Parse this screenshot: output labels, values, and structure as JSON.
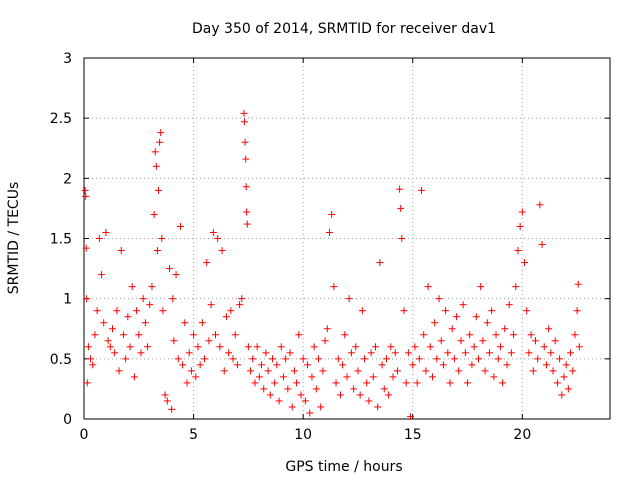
{
  "chart_data": {
    "type": "scatter",
    "title": "Day 350 of 2014, SRMTID for receiver dav1",
    "xlabel": "GPS time / hours",
    "ylabel": "SRMTID / TECUs",
    "xlim": [
      0,
      24
    ],
    "ylim": [
      0,
      3
    ],
    "xticks": [
      0,
      5,
      10,
      15,
      20
    ],
    "yticks": [
      0,
      0.5,
      1,
      1.5,
      2,
      2.5,
      3
    ],
    "xtick_labels": [
      "0",
      "5",
      "10",
      "15",
      "20"
    ],
    "ytick_labels": [
      "0",
      "0.5",
      "1",
      "1.5",
      "2",
      "2.5",
      "3"
    ],
    "grid": true,
    "marker": "plus",
    "color": "#ff0000",
    "series": [
      {
        "name": "dav1",
        "points": [
          [
            0.05,
            1.9
          ],
          [
            0.08,
            1.85
          ],
          [
            0.1,
            1.42
          ],
          [
            0.12,
            1.0
          ],
          [
            0.15,
            0.3
          ],
          [
            0.2,
            0.6
          ],
          [
            0.3,
            0.5
          ],
          [
            0.4,
            0.45
          ],
          [
            0.5,
            0.7
          ],
          [
            0.6,
            0.9
          ],
          [
            0.7,
            1.5
          ],
          [
            0.8,
            1.2
          ],
          [
            0.9,
            0.8
          ],
          [
            1.0,
            1.55
          ],
          [
            1.1,
            0.65
          ],
          [
            1.2,
            0.6
          ],
          [
            1.3,
            0.75
          ],
          [
            1.4,
            0.55
          ],
          [
            1.5,
            0.9
          ],
          [
            1.6,
            0.4
          ],
          [
            1.7,
            1.4
          ],
          [
            1.8,
            0.7
          ],
          [
            1.9,
            0.5
          ],
          [
            2.0,
            0.85
          ],
          [
            2.1,
            0.6
          ],
          [
            2.2,
            1.1
          ],
          [
            2.3,
            0.35
          ],
          [
            2.4,
            0.9
          ],
          [
            2.5,
            0.7
          ],
          [
            2.6,
            0.55
          ],
          [
            2.7,
            1.0
          ],
          [
            2.8,
            0.8
          ],
          [
            2.9,
            0.6
          ],
          [
            3.0,
            0.95
          ],
          [
            3.1,
            1.1
          ],
          [
            3.2,
            1.7
          ],
          [
            3.25,
            2.22
          ],
          [
            3.3,
            2.1
          ],
          [
            3.35,
            1.4
          ],
          [
            3.4,
            1.9
          ],
          [
            3.45,
            2.3
          ],
          [
            3.5,
            2.38
          ],
          [
            3.55,
            1.5
          ],
          [
            3.6,
            0.9
          ],
          [
            3.7,
            0.2
          ],
          [
            3.8,
            0.15
          ],
          [
            3.9,
            1.25
          ],
          [
            4.0,
            0.08
          ],
          [
            4.05,
            1.0
          ],
          [
            4.1,
            0.65
          ],
          [
            4.2,
            1.2
          ],
          [
            4.3,
            0.5
          ],
          [
            4.4,
            1.6
          ],
          [
            4.5,
            0.45
          ],
          [
            4.6,
            0.8
          ],
          [
            4.7,
            0.3
          ],
          [
            4.8,
            0.55
          ],
          [
            4.9,
            0.4
          ],
          [
            5.0,
            0.7
          ],
          [
            5.1,
            0.35
          ],
          [
            5.2,
            0.6
          ],
          [
            5.3,
            0.45
          ],
          [
            5.4,
            0.8
          ],
          [
            5.5,
            0.5
          ],
          [
            5.6,
            1.3
          ],
          [
            5.7,
            0.65
          ],
          [
            5.8,
            0.95
          ],
          [
            5.9,
            1.55
          ],
          [
            6.0,
            0.7
          ],
          [
            6.1,
            1.5
          ],
          [
            6.2,
            0.6
          ],
          [
            6.3,
            1.4
          ],
          [
            6.4,
            0.4
          ],
          [
            6.5,
            0.85
          ],
          [
            6.6,
            0.55
          ],
          [
            6.7,
            0.9
          ],
          [
            6.8,
            0.5
          ],
          [
            6.9,
            0.7
          ],
          [
            7.0,
            0.45
          ],
          [
            7.1,
            0.95
          ],
          [
            7.2,
            1.0
          ],
          [
            7.3,
            2.54
          ],
          [
            7.32,
            2.47
          ],
          [
            7.35,
            2.3
          ],
          [
            7.38,
            2.16
          ],
          [
            7.4,
            1.93
          ],
          [
            7.42,
            1.72
          ],
          [
            7.45,
            1.62
          ],
          [
            7.5,
            0.6
          ],
          [
            7.6,
            0.4
          ],
          [
            7.7,
            0.5
          ],
          [
            7.8,
            0.3
          ],
          [
            7.9,
            0.6
          ],
          [
            8.0,
            0.35
          ],
          [
            8.1,
            0.45
          ],
          [
            8.2,
            0.25
          ],
          [
            8.3,
            0.55
          ],
          [
            8.4,
            0.4
          ],
          [
            8.5,
            0.2
          ],
          [
            8.6,
            0.5
          ],
          [
            8.7,
            0.3
          ],
          [
            8.8,
            0.45
          ],
          [
            8.9,
            0.15
          ],
          [
            9.0,
            0.6
          ],
          [
            9.1,
            0.35
          ],
          [
            9.2,
            0.5
          ],
          [
            9.3,
            0.25
          ],
          [
            9.4,
            0.55
          ],
          [
            9.5,
            0.1
          ],
          [
            9.6,
            0.4
          ],
          [
            9.7,
            0.3
          ],
          [
            9.8,
            0.7
          ],
          [
            9.9,
            0.2
          ],
          [
            10.0,
            0.5
          ],
          [
            10.1,
            0.15
          ],
          [
            10.2,
            0.45
          ],
          [
            10.3,
            0.05
          ],
          [
            10.4,
            0.35
          ],
          [
            10.5,
            0.6
          ],
          [
            10.6,
            0.25
          ],
          [
            10.7,
            0.5
          ],
          [
            10.8,
            0.1
          ],
          [
            10.9,
            0.4
          ],
          [
            11.0,
            0.65
          ],
          [
            11.1,
            0.75
          ],
          [
            11.2,
            1.55
          ],
          [
            11.3,
            1.7
          ],
          [
            11.4,
            1.1
          ],
          [
            11.5,
            0.3
          ],
          [
            11.6,
            0.5
          ],
          [
            11.7,
            0.2
          ],
          [
            11.8,
            0.45
          ],
          [
            11.9,
            0.7
          ],
          [
            12.0,
            0.35
          ],
          [
            12.1,
            1.0
          ],
          [
            12.2,
            0.55
          ],
          [
            12.3,
            0.25
          ],
          [
            12.4,
            0.6
          ],
          [
            12.5,
            0.4
          ],
          [
            12.6,
            0.2
          ],
          [
            12.7,
            0.9
          ],
          [
            12.8,
            0.5
          ],
          [
            12.9,
            0.3
          ],
          [
            13.0,
            0.15
          ],
          [
            13.1,
            0.55
          ],
          [
            13.2,
            0.35
          ],
          [
            13.3,
            0.6
          ],
          [
            13.4,
            0.1
          ],
          [
            13.5,
            1.3
          ],
          [
            13.6,
            0.45
          ],
          [
            13.7,
            0.25
          ],
          [
            13.8,
            0.5
          ],
          [
            13.9,
            0.2
          ],
          [
            14.0,
            0.6
          ],
          [
            14.1,
            0.35
          ],
          [
            14.2,
            0.55
          ],
          [
            14.3,
            0.4
          ],
          [
            14.4,
            1.91
          ],
          [
            14.45,
            1.75
          ],
          [
            14.5,
            1.5
          ],
          [
            14.6,
            0.9
          ],
          [
            14.7,
            0.3
          ],
          [
            14.8,
            0.55
          ],
          [
            14.9,
            0.02
          ],
          [
            15.0,
            0.45
          ],
          [
            15.1,
            0.6
          ],
          [
            15.2,
            0.3
          ],
          [
            15.3,
            0.5
          ],
          [
            15.4,
            1.9
          ],
          [
            15.5,
            0.7
          ],
          [
            15.6,
            0.4
          ],
          [
            15.7,
            1.1
          ],
          [
            15.8,
            0.6
          ],
          [
            15.9,
            0.35
          ],
          [
            16.0,
            0.8
          ],
          [
            16.1,
            0.5
          ],
          [
            16.2,
            1.0
          ],
          [
            16.3,
            0.65
          ],
          [
            16.4,
            0.45
          ],
          [
            16.5,
            0.9
          ],
          [
            16.6,
            0.55
          ],
          [
            16.7,
            0.3
          ],
          [
            16.8,
            0.75
          ],
          [
            16.9,
            0.5
          ],
          [
            17.0,
            0.85
          ],
          [
            17.1,
            0.4
          ],
          [
            17.2,
            0.65
          ],
          [
            17.3,
            0.95
          ],
          [
            17.4,
            0.55
          ],
          [
            17.5,
            0.3
          ],
          [
            17.6,
            0.7
          ],
          [
            17.7,
            0.45
          ],
          [
            17.8,
            0.6
          ],
          [
            17.9,
            0.85
          ],
          [
            18.0,
            0.5
          ],
          [
            18.1,
            1.1
          ],
          [
            18.2,
            0.65
          ],
          [
            18.3,
            0.4
          ],
          [
            18.4,
            0.8
          ],
          [
            18.5,
            0.55
          ],
          [
            18.6,
            0.9
          ],
          [
            18.7,
            0.35
          ],
          [
            18.8,
            0.7
          ],
          [
            18.9,
            0.5
          ],
          [
            19.0,
            0.6
          ],
          [
            19.1,
            0.3
          ],
          [
            19.2,
            0.75
          ],
          [
            19.3,
            0.45
          ],
          [
            19.4,
            0.95
          ],
          [
            19.5,
            0.55
          ],
          [
            19.6,
            0.7
          ],
          [
            19.7,
            1.1
          ],
          [
            19.8,
            1.4
          ],
          [
            19.9,
            1.6
          ],
          [
            20.0,
            1.72
          ],
          [
            20.1,
            1.3
          ],
          [
            20.2,
            0.9
          ],
          [
            20.3,
            0.55
          ],
          [
            20.4,
            0.7
          ],
          [
            20.5,
            0.4
          ],
          [
            20.6,
            0.65
          ],
          [
            20.7,
            0.5
          ],
          [
            20.8,
            1.78
          ],
          [
            20.9,
            1.45
          ],
          [
            21.0,
            0.6
          ],
          [
            21.1,
            0.45
          ],
          [
            21.2,
            0.75
          ],
          [
            21.3,
            0.55
          ],
          [
            21.4,
            0.4
          ],
          [
            21.5,
            0.65
          ],
          [
            21.6,
            0.3
          ],
          [
            21.7,
            0.5
          ],
          [
            21.8,
            0.2
          ],
          [
            21.9,
            0.35
          ],
          [
            22.0,
            0.45
          ],
          [
            22.1,
            0.25
          ],
          [
            22.2,
            0.55
          ],
          [
            22.3,
            0.4
          ],
          [
            22.4,
            0.7
          ],
          [
            22.5,
            0.9
          ],
          [
            22.55,
            1.12
          ],
          [
            22.6,
            0.6
          ]
        ]
      }
    ]
  }
}
